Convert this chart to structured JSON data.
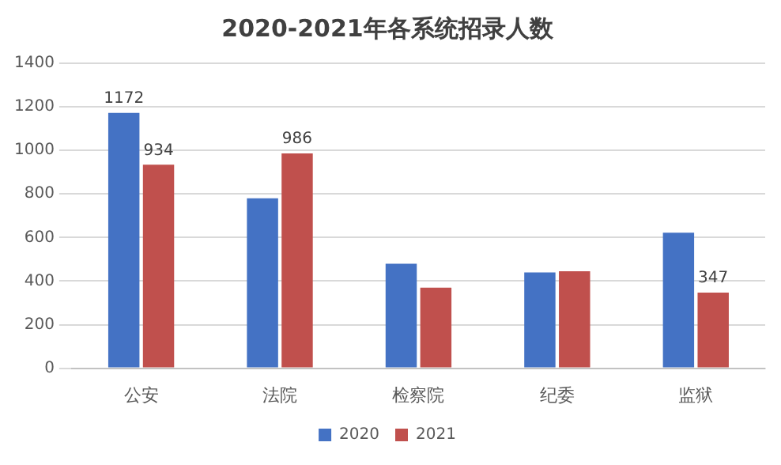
{
  "chart_data": {
    "type": "bar",
    "title": "2020-2021年各系统招录人数",
    "categories": [
      "公安",
      "法院",
      "检察院",
      "纪委",
      "监狱"
    ],
    "series": [
      {
        "name": "2020",
        "color": "#4472c4",
        "values": [
          1172,
          780,
          480,
          440,
          622
        ],
        "value_labels": [
          "1172",
          null,
          null,
          null,
          null
        ]
      },
      {
        "name": "2021",
        "color": "#c0504d",
        "values": [
          934,
          986,
          370,
          445,
          347
        ],
        "value_labels": [
          "934",
          "986",
          null,
          null,
          "347"
        ]
      }
    ],
    "ylim": [
      0,
      1400
    ],
    "yticks": [
      0,
      200,
      400,
      600,
      800,
      1000,
      1200,
      1400
    ],
    "grid": "y",
    "legend": "bottom"
  }
}
